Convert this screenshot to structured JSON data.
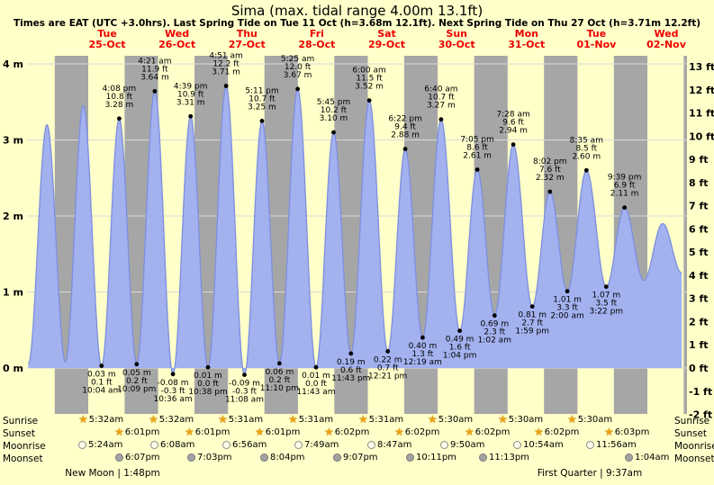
{
  "page": {
    "title": "Sima (max. tidal range 4.00m 13.1ft)",
    "subtitle": "Times are EAT (UTC +3.0hrs). Last Spring Tide on Tue 11 Oct (h=3.68m 12.1ft). Next Spring Tide on Thu 27 Oct (h=3.71m 12.2ft)"
  },
  "colors": {
    "page_bg": "#ffffc9",
    "day_band": "#ffffc9",
    "night_band": "#a6a6a6",
    "tide_fill": "#a3b1ef",
    "tide_line": "#7c8fe0",
    "header_red": "#ee0000",
    "star_gold": "#eda413",
    "gridline": "#d9d9d9",
    "text": "#000000"
  },
  "chart_data": {
    "type": "area",
    "title": "Sima (max. tidal range 4.00m 13.1ft)",
    "x_axis": {
      "t_start": -15.52,
      "t_end": 211.1,
      "unit": "hours from Tue 25-Oct 00:00"
    },
    "y_axis_left": {
      "unit": "m",
      "ticks": [
        4,
        3,
        2,
        1,
        0
      ],
      "tick_labels": [
        "4 m",
        "3 m",
        "2 m",
        "1 m",
        "0 m"
      ]
    },
    "y_axis_right": {
      "unit": "ft",
      "tick_labels": [
        "13 ft",
        "12 ft",
        "11 ft",
        "10 ft",
        "9 ft",
        "8 ft",
        "7 ft",
        "6 ft",
        "5 ft",
        "4 ft",
        "3 ft",
        "2 ft",
        "1 ft",
        "0 ft",
        "-1 ft",
        "-2 ft"
      ]
    },
    "ylim_m": [
      -0.6,
      4.11
    ],
    "days": [
      {
        "dow": "Tue",
        "date": "25-Oct",
        "noon_t": 12
      },
      {
        "dow": "Wed",
        "date": "26-Oct",
        "noon_t": 36
      },
      {
        "dow": "Thu",
        "date": "27-Oct",
        "noon_t": 60
      },
      {
        "dow": "Fri",
        "date": "28-Oct",
        "noon_t": 84
      },
      {
        "dow": "Sat",
        "date": "29-Oct",
        "noon_t": 108
      },
      {
        "dow": "Sun",
        "date": "30-Oct",
        "noon_t": 132
      },
      {
        "dow": "Mon",
        "date": "31-Oct",
        "noon_t": 156
      },
      {
        "dow": "Tue",
        "date": "01-Nov",
        "noon_t": 180
      },
      {
        "dow": "Wed",
        "date": "02-Nov",
        "noon_t": 204
      }
    ],
    "night_bands_t": [
      [
        -6,
        5.5
      ],
      [
        18,
        29.5
      ],
      [
        42,
        53.5
      ],
      [
        66,
        77.5
      ],
      [
        90,
        101.5
      ],
      [
        114,
        125.5
      ],
      [
        138,
        149.5
      ],
      [
        162,
        173.5
      ],
      [
        186,
        197.5
      ],
      [
        210,
        221.5
      ]
    ],
    "tide_events": [
      {
        "type": "low",
        "t": -15.1,
        "height_m": 0.05
      },
      {
        "type": "high",
        "t": -8.67,
        "height_m": 3.2
      },
      {
        "type": "low",
        "t": -2.33,
        "height_m": 0.08
      },
      {
        "type": "high",
        "t": 3.78,
        "height_m": 3.45
      },
      {
        "type": "low",
        "t": 10.07,
        "height_m": 0.03,
        "label_m": "0.03 m",
        "label_ft": "0.1 ft",
        "label_time": "10:04 am"
      },
      {
        "type": "high",
        "t": 16.13,
        "height_m": 3.28,
        "label_m": "3.28 m",
        "label_ft": "10.8 ft",
        "label_time": "4:08 pm"
      },
      {
        "type": "low",
        "t": 22.15,
        "height_m": 0.05,
        "label_m": "0.05 m",
        "label_ft": "0.2 ft",
        "label_time": "10:09 pm"
      },
      {
        "type": "high",
        "t": 28.35,
        "height_m": 3.64,
        "label_m": "3.64 m",
        "label_ft": "11.9 ft",
        "label_time": "4:21 am"
      },
      {
        "type": "low",
        "t": 34.6,
        "height_m": -0.08,
        "label_m": "-0.08 m",
        "label_ft": "-0.3 ft",
        "label_time": "10:36 am"
      },
      {
        "type": "high",
        "t": 40.65,
        "height_m": 3.31,
        "label_m": "3.31 m",
        "label_ft": "10.9 ft",
        "label_time": "4:39 pm"
      },
      {
        "type": "low",
        "t": 46.63,
        "height_m": 0.01,
        "label_m": "0.01 m",
        "label_ft": "0.0 ft",
        "label_time": "10:38 pm"
      },
      {
        "type": "high",
        "t": 52.85,
        "height_m": 3.71,
        "label_m": "3.71 m",
        "label_ft": "12.2 ft",
        "label_time": "4:51 am"
      },
      {
        "type": "low",
        "t": 59.13,
        "height_m": -0.09,
        "label_m": "-0.09 m",
        "label_ft": "-0.3 ft",
        "label_time": "11:08 am"
      },
      {
        "type": "high",
        "t": 65.18,
        "height_m": 3.25,
        "label_m": "3.25 m",
        "label_ft": "10.7 ft",
        "label_time": "5:11 pm"
      },
      {
        "type": "low",
        "t": 71.17,
        "height_m": 0.06,
        "label_m": "0.06 m",
        "label_ft": "0.2 ft",
        "label_time": "11:10 pm"
      },
      {
        "type": "high",
        "t": 77.42,
        "height_m": 3.67,
        "label_m": "3.67 m",
        "label_ft": "12.0 ft",
        "label_time": "5:25 am"
      },
      {
        "type": "low",
        "t": 83.72,
        "height_m": 0.01,
        "label_m": "0.01 m",
        "label_ft": "0.0 ft",
        "label_time": "11:43 am"
      },
      {
        "type": "high",
        "t": 89.75,
        "height_m": 3.1,
        "label_m": "3.10 m",
        "label_ft": "10.2 ft",
        "label_time": "5:45 pm"
      },
      {
        "type": "low",
        "t": 95.72,
        "height_m": 0.19,
        "label_m": "0.19 m",
        "label_ft": "0.6 ft",
        "label_time": "11:43 pm"
      },
      {
        "type": "high",
        "t": 102,
        "height_m": 3.52,
        "label_m": "3.52 m",
        "label_ft": "11.5 ft",
        "label_time": "6:00 am"
      },
      {
        "type": "low",
        "t": 108.35,
        "height_m": 0.22,
        "label_m": "0.22 m",
        "label_ft": "0.7 ft",
        "label_time": "12:21 pm"
      },
      {
        "type": "high",
        "t": 114.37,
        "height_m": 2.88,
        "label_m": "2.88 m",
        "label_ft": "9.4 ft",
        "label_time": "6:22 pm"
      },
      {
        "type": "low",
        "t": 120.32,
        "height_m": 0.4,
        "label_m": "0.40 m",
        "label_ft": "1.3 ft",
        "label_time": "12:19 am"
      },
      {
        "type": "high",
        "t": 126.67,
        "height_m": 3.27,
        "label_m": "3.27 m",
        "label_ft": "10.7 ft",
        "label_time": "6:40 am"
      },
      {
        "type": "low",
        "t": 133.07,
        "height_m": 0.49,
        "label_m": "0.49 m",
        "label_ft": "1.6 ft",
        "label_time": "1:04 pm"
      },
      {
        "type": "high",
        "t": 139.08,
        "height_m": 2.61,
        "label_m": "2.61 m",
        "label_ft": "8.6 ft",
        "label_time": "7:05 pm"
      },
      {
        "type": "low",
        "t": 145.03,
        "height_m": 0.69,
        "label_m": "0.69 m",
        "label_ft": "2.3 ft",
        "label_time": "1:02 am"
      },
      {
        "type": "high",
        "t": 151.47,
        "height_m": 2.94,
        "label_m": "2.94 m",
        "label_ft": "9.6 ft",
        "label_time": "7:28 am"
      },
      {
        "type": "low",
        "t": 157.98,
        "height_m": 0.81,
        "label_m": "0.81 m",
        "label_ft": "2.7 ft",
        "label_time": "1:59 pm"
      },
      {
        "type": "high",
        "t": 164.03,
        "height_m": 2.32,
        "label_m": "2.32 m",
        "label_ft": "7.6 ft",
        "label_time": "8:02 pm"
      },
      {
        "type": "low",
        "t": 170,
        "height_m": 1.01,
        "label_m": "1.01 m",
        "label_ft": "3.3 ft",
        "label_time": "2:00 am"
      },
      {
        "type": "high",
        "t": 176.58,
        "height_m": 2.6,
        "label_m": "2.60 m",
        "label_ft": "8.5 ft",
        "label_time": "8:35 am"
      },
      {
        "type": "low",
        "t": 183.37,
        "height_m": 1.07,
        "label_m": "1.07 m",
        "label_ft": "3.5 ft",
        "label_time": "3:22 pm"
      },
      {
        "type": "high",
        "t": 189.65,
        "height_m": 2.11,
        "label_m": "2.11 m",
        "label_ft": "6.9 ft",
        "label_time": "9:39 pm"
      },
      {
        "type": "low",
        "t": 196.25,
        "height_m": 1.15
      },
      {
        "type": "high",
        "t": 202.75,
        "height_m": 1.9
      },
      {
        "type": "low",
        "t": 209.3,
        "height_m": 1.25
      }
    ]
  },
  "astro": {
    "rows": [
      {
        "key": "sunrise",
        "label": "Sunrise",
        "icon": "star",
        "events": [
          {
            "time": "5:32am",
            "t": 5.53
          },
          {
            "time": "5:32am",
            "t": 29.53
          },
          {
            "time": "5:31am",
            "t": 53.52
          },
          {
            "time": "5:31am",
            "t": 77.52
          },
          {
            "time": "5:31am",
            "t": 101.52
          },
          {
            "time": "5:30am",
            "t": 125.5
          },
          {
            "time": "5:30am",
            "t": 149.5
          },
          {
            "time": "5:30am",
            "t": 173.5
          }
        ]
      },
      {
        "key": "sunset",
        "label": "Sunset",
        "icon": "star",
        "events": [
          {
            "time": "6:01pm",
            "t": 18.02
          },
          {
            "time": "6:01pm",
            "t": 42.02
          },
          {
            "time": "6:01pm",
            "t": 66.02
          },
          {
            "time": "6:02pm",
            "t": 90.03
          },
          {
            "time": "6:02pm",
            "t": 114.03
          },
          {
            "time": "6:02pm",
            "t": 138.03
          },
          {
            "time": "6:02pm",
            "t": 162.03
          },
          {
            "time": "6:03pm",
            "t": 186.05
          }
        ]
      },
      {
        "key": "moonrise",
        "label": "Moonrise",
        "icon": "moon-light",
        "events": [
          {
            "time": "5:24am",
            "t": 5.4
          },
          {
            "time": "6:08am",
            "t": 30.13
          },
          {
            "time": "6:56am",
            "t": 54.93
          },
          {
            "time": "7:49am",
            "t": 79.82
          },
          {
            "time": "8:47am",
            "t": 104.78
          },
          {
            "time": "9:50am",
            "t": 129.83
          },
          {
            "time": "10:54am",
            "t": 154.9
          },
          {
            "time": "11:56am",
            "t": 179.93
          }
        ]
      },
      {
        "key": "moonset",
        "label": "Moonset",
        "icon": "moon-dark",
        "events": [
          {
            "time": "6:07pm",
            "t": 18.12
          },
          {
            "time": "7:03pm",
            "t": 43.05
          },
          {
            "time": "8:04pm",
            "t": 68.07
          },
          {
            "time": "9:07pm",
            "t": 93.12
          },
          {
            "time": "10:11pm",
            "t": 118.18
          },
          {
            "time": "11:13pm",
            "t": 143.22
          },
          {
            "time": "1:04am",
            "t": 193.07
          }
        ]
      }
    ],
    "phases": [
      {
        "name": "New Moon",
        "time": "1:48pm",
        "t": 13.8
      },
      {
        "name": "First Quarter",
        "time": "9:37am",
        "t": 177.62
      }
    ]
  }
}
